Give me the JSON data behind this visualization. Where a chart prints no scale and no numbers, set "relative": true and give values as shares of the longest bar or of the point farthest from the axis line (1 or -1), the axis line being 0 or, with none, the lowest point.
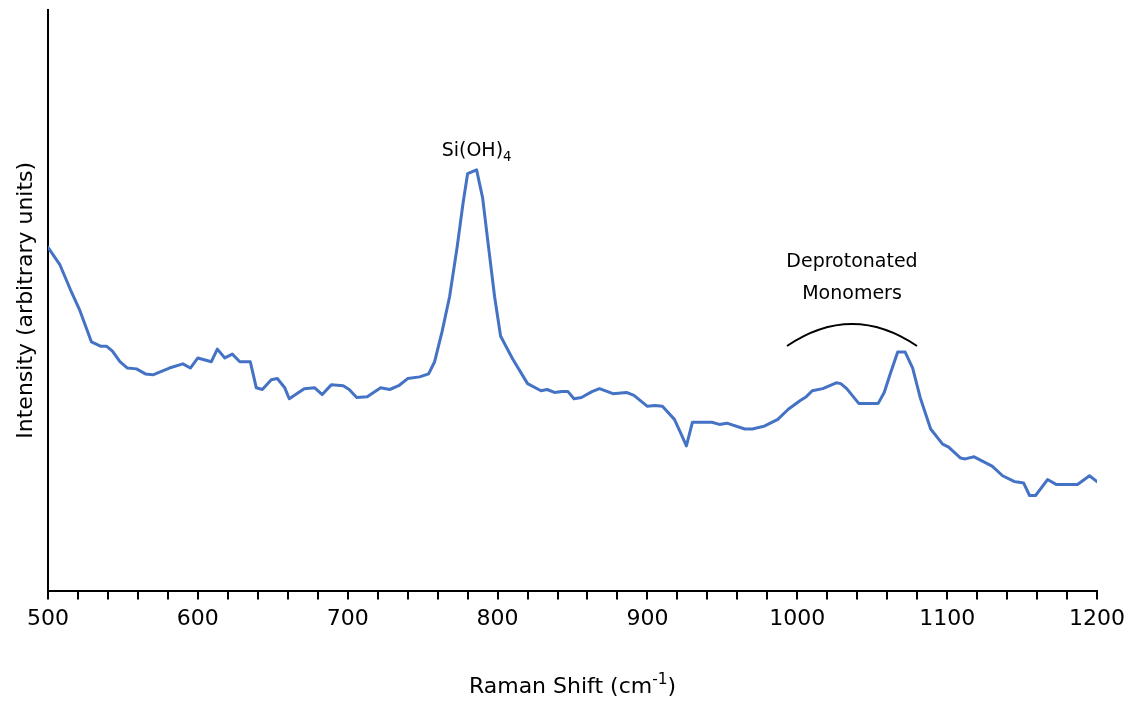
{
  "chart_data": {
    "type": "line",
    "xlabel": "Raman Shift (cm$^{-1}$)",
    "ylabel": "Intensity (arbitrary units)",
    "relative": true,
    "marker": "none",
    "legend": false,
    "xlim": [
      500,
      1200
    ],
    "xticks": [
      500,
      {
        "value": 520,
        "label": null
      },
      {
        "value": 540,
        "label": null
      },
      {
        "value": 560,
        "label": null
      },
      {
        "value": 580,
        "label": null
      },
      600,
      {
        "value": 620,
        "label": null
      },
      {
        "value": 640,
        "label": null
      },
      {
        "value": 660,
        "label": null
      },
      {
        "value": 680,
        "label": null
      },
      700,
      {
        "value": 720,
        "label": null
      },
      {
        "value": 740,
        "label": null
      },
      {
        "value": 760,
        "label": null
      },
      {
        "value": 780,
        "label": null
      },
      800,
      {
        "value": 820,
        "label": null
      },
      {
        "value": 840,
        "label": null
      },
      {
        "value": 860,
        "label": null
      },
      {
        "value": 880,
        "label": null
      },
      900,
      {
        "value": 920,
        "label": null
      },
      {
        "value": 940,
        "label": null
      },
      {
        "value": 960,
        "label": null
      },
      {
        "value": 980,
        "label": null
      },
      1000,
      {
        "value": 1020,
        "label": null
      },
      {
        "value": 1040,
        "label": null
      },
      {
        "value": 1060,
        "label": null
      },
      {
        "value": 1080,
        "label": null
      },
      1100,
      {
        "value": 1120,
        "label": null
      },
      {
        "value": 1140,
        "label": null
      },
      {
        "value": 1160,
        "label": null
      },
      {
        "value": 1180,
        "label": null
      },
      1200
    ],
    "x": [
      500,
      508,
      515,
      521,
      529,
      535,
      539,
      543,
      548,
      553,
      559,
      565,
      570,
      581,
      590,
      595,
      600,
      609,
      613,
      618,
      623,
      628,
      635,
      639,
      643,
      649,
      653,
      658,
      661,
      671,
      678,
      683,
      689,
      697,
      701,
      706,
      713,
      722,
      728,
      734,
      740,
      748,
      754,
      758,
      763,
      768,
      773,
      777,
      780,
      786,
      790,
      794,
      798,
      802,
      810,
      820,
      829,
      833,
      838,
      843,
      847,
      851,
      856,
      863,
      868,
      877,
      886,
      891,
      900,
      905,
      910,
      918,
      922,
      926,
      930,
      943,
      948,
      953,
      965,
      970,
      978,
      987,
      994,
      1002,
      1006,
      1010,
      1017,
      1026,
      1029,
      1033,
      1041,
      1045,
      1054,
      1058,
      1062,
      1067,
      1072,
      1077,
      1082,
      1089,
      1097,
      1101,
      1109,
      1112,
      1118,
      1130,
      1137,
      1145,
      1151,
      1155,
      1159,
      1167,
      1173,
      1182,
      1187,
      1195,
      1200
    ],
    "series": [
      {
        "color": "#4472c4",
        "values": [
          0.816,
          0.774,
          0.715,
          0.668,
          0.591,
          0.581,
          0.581,
          0.569,
          0.544,
          0.529,
          0.527,
          0.515,
          0.513,
          0.529,
          0.539,
          0.529,
          0.553,
          0.544,
          0.574,
          0.553,
          0.562,
          0.544,
          0.544,
          0.482,
          0.478,
          0.501,
          0.504,
          0.482,
          0.456,
          0.48,
          0.482,
          0.466,
          0.489,
          0.487,
          0.478,
          0.459,
          0.461,
          0.482,
          0.478,
          0.487,
          0.504,
          0.508,
          0.515,
          0.544,
          0.616,
          0.699,
          0.816,
          0.922,
          0.991,
          1.0,
          0.934,
          0.816,
          0.699,
          0.605,
          0.551,
          0.492,
          0.475,
          0.478,
          0.471,
          0.473,
          0.473,
          0.456,
          0.459,
          0.473,
          0.48,
          0.468,
          0.471,
          0.464,
          0.438,
          0.44,
          0.438,
          0.407,
          0.376,
          0.344,
          0.4,
          0.4,
          0.395,
          0.398,
          0.384,
          0.384,
          0.391,
          0.407,
          0.431,
          0.452,
          0.461,
          0.475,
          0.48,
          0.494,
          0.492,
          0.48,
          0.445,
          0.445,
          0.445,
          0.471,
          0.515,
          0.567,
          0.567,
          0.529,
          0.459,
          0.384,
          0.348,
          0.341,
          0.315,
          0.313,
          0.318,
          0.296,
          0.273,
          0.259,
          0.256,
          0.226,
          0.226,
          0.264,
          0.252,
          0.252,
          0.252,
          0.273,
          0.259
        ]
      }
    ],
    "annotations": [
      {
        "text": "Si(OH)$_{4}$",
        "x": 786,
        "y": 1.0
      },
      "Deprotonated Monomers"
    ]
  }
}
